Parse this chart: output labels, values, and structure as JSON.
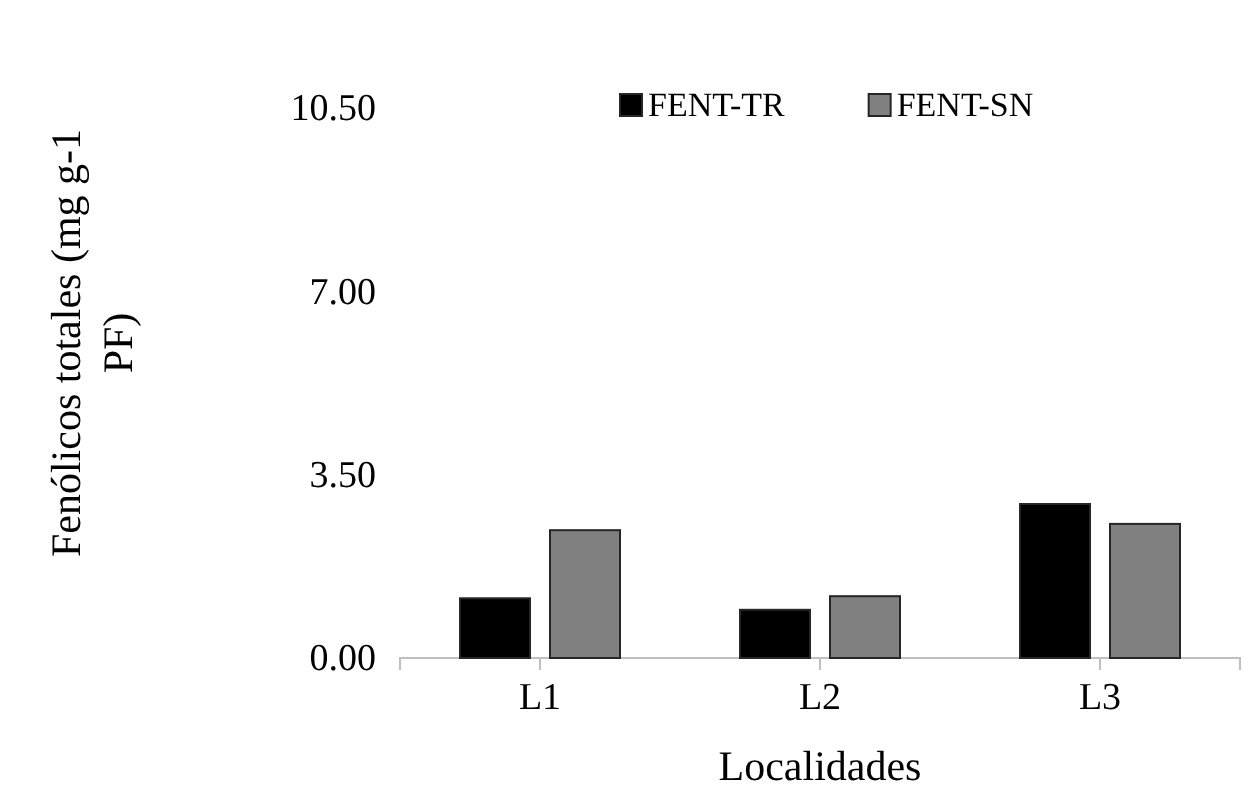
{
  "chart_data": {
    "type": "bar",
    "xlabel": "Localidades",
    "ylabel": "Fenólicos totales (mg g-1 PF)",
    "categories": [
      "L1",
      "L2",
      "L3"
    ],
    "series": [
      {
        "name": "FENT-TR",
        "color": "#000000",
        "values": [
          1.14,
          0.92,
          2.94
        ]
      },
      {
        "name": "FENT-SN",
        "color": "#808080",
        "values": [
          2.44,
          1.18,
          2.56
        ]
      }
    ],
    "ylim": [
      0,
      10.5
    ],
    "yticks": [
      {
        "value": 0,
        "label": "0.00"
      },
      {
        "value": 3.5,
        "label": "3.50"
      },
      {
        "value": 7,
        "label": "7.00"
      },
      {
        "value": 10.5,
        "label": "10.50"
      }
    ],
    "grid": false,
    "legend": "top"
  }
}
